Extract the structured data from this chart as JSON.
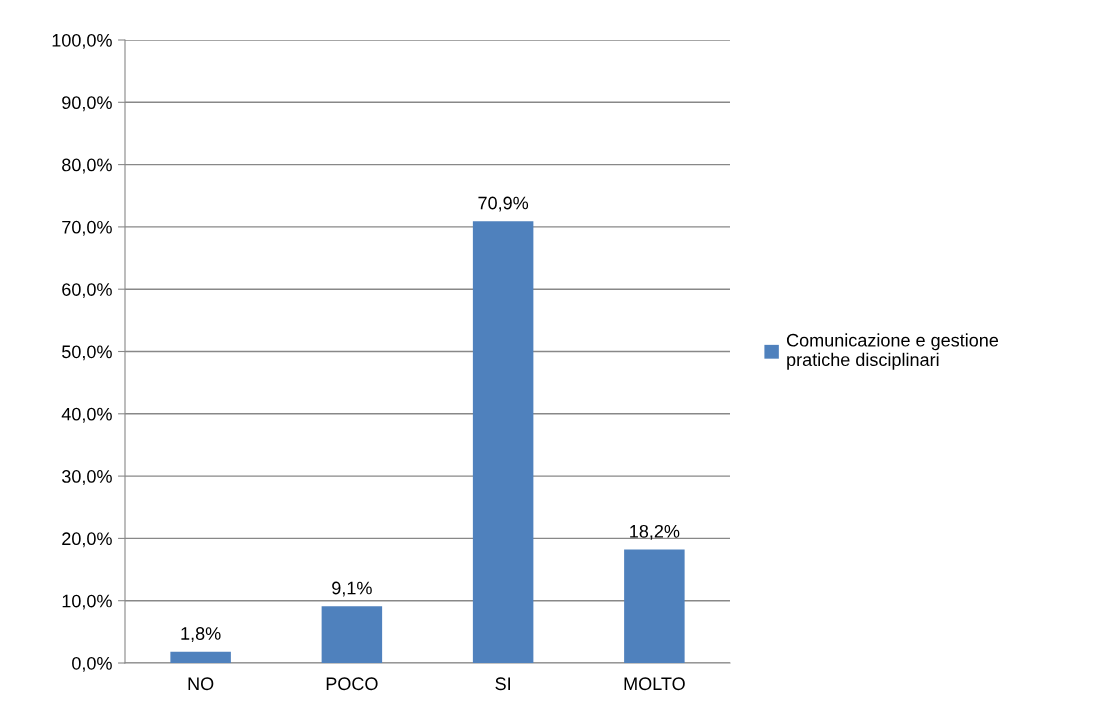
{
  "chart_data": {
    "type": "bar",
    "categories": [
      "NO",
      "POCO",
      "SI",
      "MOLTO"
    ],
    "series": [
      {
        "name": "Comunicazione e gestione\npratiche disciplinari",
        "color": "#4f81bd",
        "values": [
          1.8,
          9.1,
          70.9,
          18.2
        ],
        "value_labels": [
          "1,8%",
          "9,1%",
          "70,9%",
          "18,2%"
        ]
      }
    ],
    "ylim": [
      0,
      100
    ],
    "yticks": [
      {
        "value": 0,
        "label": "0,0%"
      },
      {
        "value": 10,
        "label": "10,0%"
      },
      {
        "value": 20,
        "label": "20,0%"
      },
      {
        "value": 30,
        "label": "30,0%"
      },
      {
        "value": 40,
        "label": "40,0%"
      },
      {
        "value": 50,
        "label": "50,0%"
      },
      {
        "value": 60,
        "label": "60,0%"
      },
      {
        "value": 70,
        "label": "70,0%"
      },
      {
        "value": 80,
        "label": "80,0%"
      },
      {
        "value": 90,
        "label": "90,0%"
      },
      {
        "value": 100,
        "label": "100,0%"
      }
    ],
    "grid": "y",
    "legend": "right"
  }
}
